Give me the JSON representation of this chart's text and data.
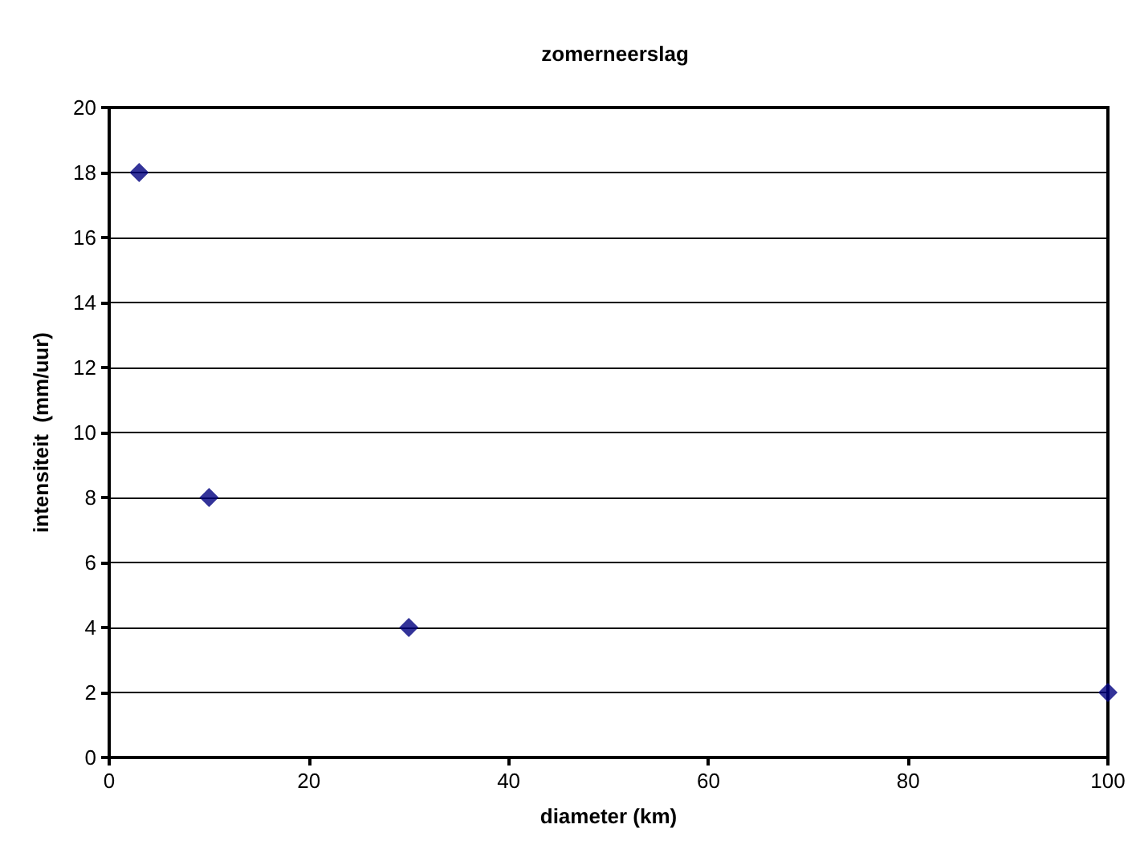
{
  "chart_data": {
    "type": "scatter",
    "title": "zomerneerslag",
    "xlabel": "diameter (km)",
    "ylabel": "intensiteit  (mm/uur)",
    "x": [
      3,
      10,
      30,
      100
    ],
    "series": [
      {
        "color": "#000080",
        "values": [
          18,
          8,
          4,
          2
        ]
      }
    ],
    "xlim": [
      0,
      100
    ],
    "xticks": [
      0,
      20,
      40,
      60,
      80,
      100
    ],
    "ylim": [
      0,
      20
    ],
    "yticks": [
      0,
      2,
      4,
      6,
      8,
      10,
      12,
      14,
      16,
      18,
      20
    ],
    "grid": "y",
    "marker": "diamond"
  }
}
